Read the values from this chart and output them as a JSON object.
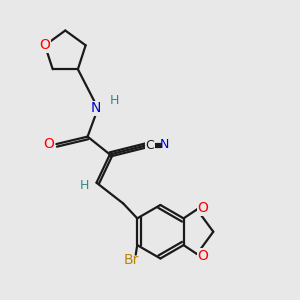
{
  "bg_color": "#e8e8e8",
  "bond_color": "#1a1a1a",
  "lw": 1.6,
  "atom_colors": {
    "O": "#ff0000",
    "N": "#0000cc",
    "Br": "#b8860b",
    "H": "#2e8b8b",
    "C": "#1a1a1a"
  },
  "figsize": [
    3.0,
    3.0
  ],
  "dpi": 100
}
